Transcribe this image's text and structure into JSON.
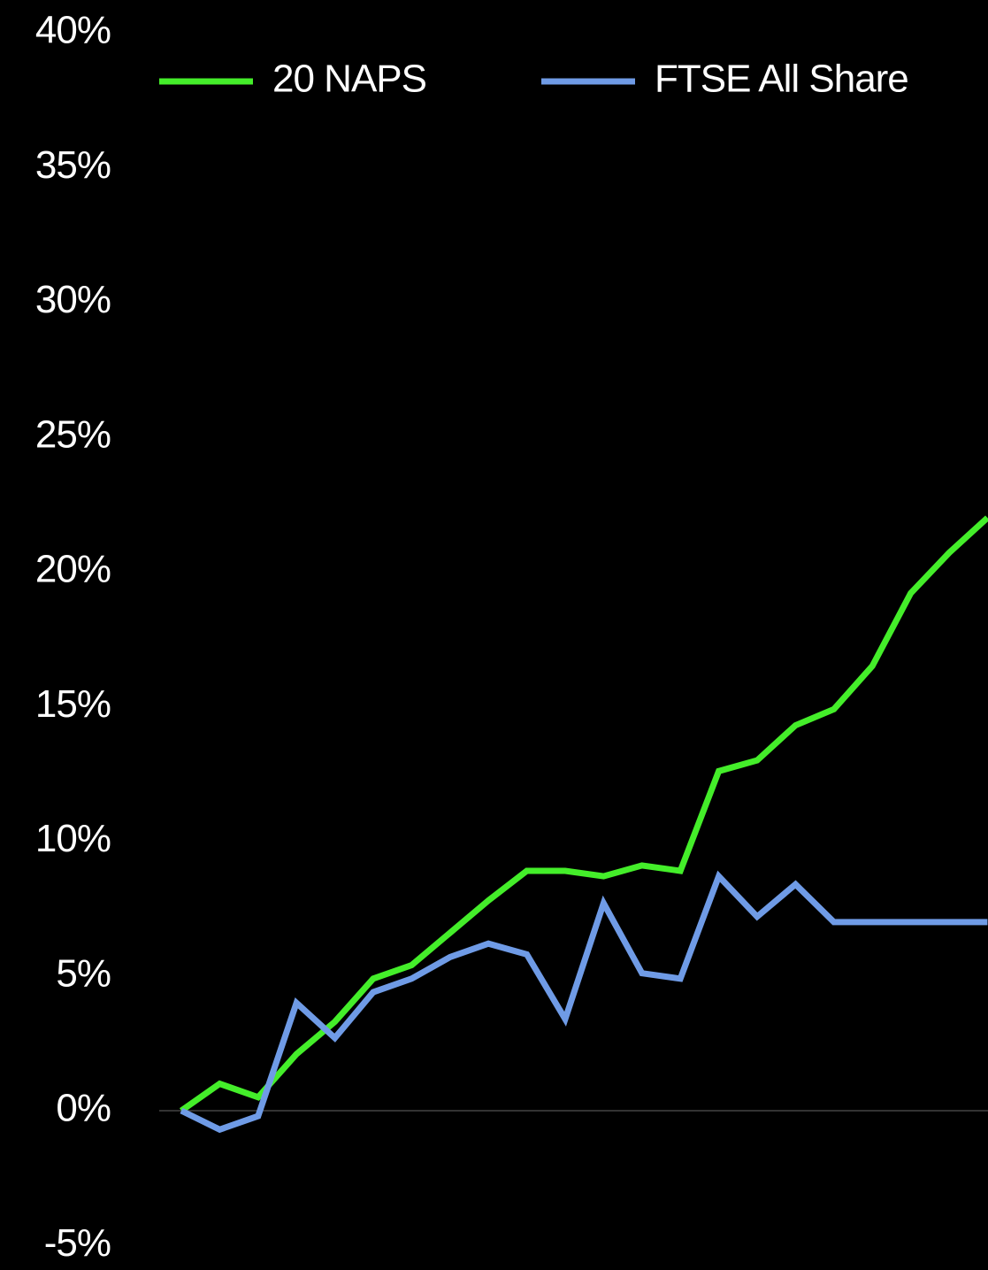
{
  "chart_data": {
    "type": "line",
    "categories": [
      null,
      null,
      null,
      null,
      null,
      null,
      null,
      null,
      null,
      null,
      null,
      null,
      null,
      null,
      null,
      null,
      null,
      null,
      null,
      null,
      null,
      null
    ],
    "series": [
      {
        "name": "20 NAPS",
        "color": "#44ee2a",
        "values": [
          0,
          1.0,
          0.5,
          2.1,
          3.3,
          4.9,
          5.4,
          6.6,
          7.8,
          8.9,
          8.9,
          8.7,
          9.1,
          8.9,
          12.6,
          13.0,
          14.3,
          14.9,
          16.5,
          19.2,
          20.7,
          22.0
        ]
      },
      {
        "name": "FTSE All Share",
        "color": "#6f9be6",
        "values": [
          0,
          -0.7,
          -0.2,
          4.0,
          2.7,
          4.4,
          4.9,
          5.7,
          6.2,
          5.8,
          3.4,
          7.7,
          5.1,
          4.9,
          8.7,
          7.2,
          8.4,
          7.0,
          7.0,
          7.0,
          7.0,
          7.0
        ]
      }
    ],
    "ylim": [
      -5,
      40
    ],
    "yticks": [
      {
        "value": -5,
        "label": "-5%"
      },
      {
        "value": 0,
        "label": "0%"
      },
      {
        "value": 5,
        "label": "5%"
      },
      {
        "value": 10,
        "label": "10%"
      },
      {
        "value": 15,
        "label": "15%"
      },
      {
        "value": 20,
        "label": "20%"
      },
      {
        "value": 25,
        "label": "25%"
      },
      {
        "value": 30,
        "label": "30%"
      },
      {
        "value": 35,
        "label": "35%"
      },
      {
        "value": 40,
        "label": "40%"
      }
    ],
    "legend": "top"
  }
}
